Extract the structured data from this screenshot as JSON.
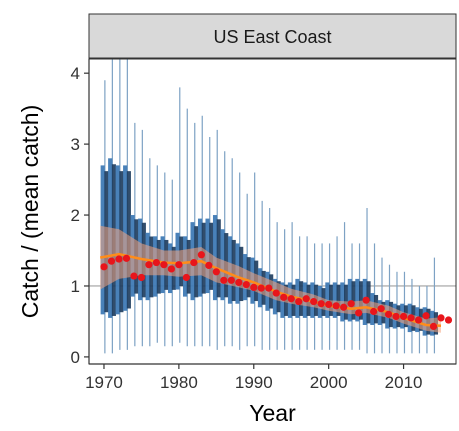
{
  "chart_data": {
    "type": "line",
    "facet_label": "US East Coast",
    "xlabel": "Year",
    "ylabel": "Catch / (mean catch)",
    "xlim": [
      1968,
      2017
    ],
    "ylim": [
      -0.1,
      4.2
    ],
    "x_ticks": [
      1970,
      1980,
      1990,
      2000,
      2010
    ],
    "y_ticks": [
      0,
      1,
      2,
      3,
      4
    ],
    "reference_line": 1,
    "grid": false,
    "colors": {
      "panel_border": "#333333",
      "strip_fill": "#d9d9d9",
      "ref_line": "#bdbdbd",
      "light_box": "#3f7ab5",
      "dark_box": "#1b3a5c",
      "whisker": "#7da2c4",
      "band_fill": "#f4a582",
      "smooth_line": "#ff8c1a",
      "point": "#e8151b"
    },
    "boxes": [
      {
        "year": 1970,
        "lo": 0.05,
        "q1": 0.6,
        "q3": 2.7,
        "hi": 3.9
      },
      {
        "year": 1971,
        "lo": 0.05,
        "q1": 0.55,
        "q3": 2.8,
        "hi": 4.2
      },
      {
        "year": 1972,
        "lo": 0.1,
        "q1": 0.6,
        "q3": 2.7,
        "hi": 4.2
      },
      {
        "year": 1973,
        "lo": 0.1,
        "q1": 0.65,
        "q3": 2.7,
        "hi": 4.2
      },
      {
        "year": 1974,
        "lo": 0.15,
        "q1": 0.85,
        "q3": 2.0,
        "hi": 3.3
      },
      {
        "year": 1975,
        "lo": 0.15,
        "q1": 0.8,
        "q3": 1.95,
        "hi": 3.2
      },
      {
        "year": 1976,
        "lo": 0.15,
        "q1": 0.8,
        "q3": 1.75,
        "hi": 2.8
      },
      {
        "year": 1977,
        "lo": 0.2,
        "q1": 0.85,
        "q3": 1.7,
        "hi": 2.7
      },
      {
        "year": 1978,
        "lo": 0.15,
        "q1": 0.9,
        "q3": 1.7,
        "hi": 2.6
      },
      {
        "year": 1979,
        "lo": 0.15,
        "q1": 0.9,
        "q3": 1.6,
        "hi": 2.5
      },
      {
        "year": 1980,
        "lo": 0.2,
        "q1": 0.95,
        "q3": 1.75,
        "hi": 3.8
      },
      {
        "year": 1981,
        "lo": 0.15,
        "q1": 0.85,
        "q3": 1.7,
        "hi": 3.5
      },
      {
        "year": 1982,
        "lo": 0.15,
        "q1": 0.8,
        "q3": 1.9,
        "hi": 3.3
      },
      {
        "year": 1983,
        "lo": 0.15,
        "q1": 0.85,
        "q3": 1.95,
        "hi": 3.4
      },
      {
        "year": 1984,
        "lo": 0.15,
        "q1": 0.9,
        "q3": 1.95,
        "hi": 3.1
      },
      {
        "year": 1985,
        "lo": 0.1,
        "q1": 0.8,
        "q3": 2.0,
        "hi": 3.2
      },
      {
        "year": 1986,
        "lo": 0.15,
        "q1": 0.8,
        "q3": 1.8,
        "hi": 2.9
      },
      {
        "year": 1987,
        "lo": 0.15,
        "q1": 0.75,
        "q3": 1.7,
        "hi": 2.8
      },
      {
        "year": 1988,
        "lo": 0.1,
        "q1": 0.75,
        "q3": 1.6,
        "hi": 2.6
      },
      {
        "year": 1989,
        "lo": 0.15,
        "q1": 0.8,
        "q3": 1.45,
        "hi": 2.3
      },
      {
        "year": 1990,
        "lo": 0.15,
        "q1": 0.75,
        "q3": 1.4,
        "hi": 2.6
      },
      {
        "year": 1991,
        "lo": 0.1,
        "q1": 0.7,
        "q3": 1.25,
        "hi": 2.2
      },
      {
        "year": 1992,
        "lo": 0.1,
        "q1": 0.65,
        "q3": 1.2,
        "hi": 2.1
      },
      {
        "year": 1993,
        "lo": 0.1,
        "q1": 0.6,
        "q3": 1.1,
        "hi": 1.9
      },
      {
        "year": 1994,
        "lo": 0.1,
        "q1": 0.55,
        "q3": 1.05,
        "hi": 1.8
      },
      {
        "year": 1995,
        "lo": 0.1,
        "q1": 0.55,
        "q3": 1.05,
        "hi": 1.9
      },
      {
        "year": 1996,
        "lo": 0.1,
        "q1": 0.55,
        "q3": 1.1,
        "hi": 1.7
      },
      {
        "year": 1997,
        "lo": 0.1,
        "q1": 0.55,
        "q3": 1.05,
        "hi": 1.7
      },
      {
        "year": 1998,
        "lo": 0.1,
        "q1": 0.55,
        "q3": 1.05,
        "hi": 1.6
      },
      {
        "year": 1999,
        "lo": 0.1,
        "q1": 0.55,
        "q3": 1.0,
        "hi": 1.6
      },
      {
        "year": 2000,
        "lo": 0.1,
        "q1": 0.55,
        "q3": 1.05,
        "hi": 1.6
      },
      {
        "year": 2001,
        "lo": 0.1,
        "q1": 0.55,
        "q3": 1.05,
        "hi": 1.7
      },
      {
        "year": 2002,
        "lo": 0.1,
        "q1": 0.5,
        "q3": 1.05,
        "hi": 1.9
      },
      {
        "year": 2003,
        "lo": 0.1,
        "q1": 0.5,
        "q3": 1.1,
        "hi": 1.6
      },
      {
        "year": 2004,
        "lo": 0.1,
        "q1": 0.5,
        "q3": 1.1,
        "hi": 1.6
      },
      {
        "year": 2005,
        "lo": 0.05,
        "q1": 0.45,
        "q3": 1.1,
        "hi": 2.1
      },
      {
        "year": 2006,
        "lo": 0.05,
        "q1": 0.45,
        "q3": 0.9,
        "hi": 1.6
      },
      {
        "year": 2007,
        "lo": 0.05,
        "q1": 0.45,
        "q3": 0.8,
        "hi": 1.4
      },
      {
        "year": 2008,
        "lo": 0.05,
        "q1": 0.4,
        "q3": 0.8,
        "hi": 1.3
      },
      {
        "year": 2009,
        "lo": 0.05,
        "q1": 0.4,
        "q3": 0.75,
        "hi": 1.2
      },
      {
        "year": 2010,
        "lo": 0.05,
        "q1": 0.4,
        "q3": 0.75,
        "hi": 1.2
      },
      {
        "year": 2011,
        "lo": 0.05,
        "q1": 0.35,
        "q3": 0.75,
        "hi": 1.1
      },
      {
        "year": 2012,
        "lo": 0.05,
        "q1": 0.35,
        "q3": 0.7,
        "hi": 1.0
      },
      {
        "year": 2013,
        "lo": 0.05,
        "q1": 0.3,
        "q3": 0.7,
        "hi": 1.0
      },
      {
        "year": 2014,
        "lo": 0.05,
        "q1": 0.3,
        "q3": 0.65,
        "hi": 1.4
      }
    ],
    "smooth": {
      "x": [
        1969.5,
        1972,
        1975,
        1978,
        1980,
        1983,
        1985,
        1988,
        1990,
        1993,
        1995,
        1998,
        2000,
        2003,
        2005,
        2008,
        2010,
        2013,
        2015
      ],
      "y": [
        1.4,
        1.45,
        1.38,
        1.33,
        1.32,
        1.35,
        1.25,
        1.12,
        1.05,
        0.92,
        0.85,
        0.78,
        0.72,
        0.68,
        0.7,
        0.63,
        0.55,
        0.45,
        0.44
      ],
      "lo": [
        0.95,
        1.1,
        1.15,
        1.15,
        1.13,
        1.15,
        1.05,
        0.98,
        0.93,
        0.8,
        0.75,
        0.7,
        0.65,
        0.6,
        0.62,
        0.55,
        0.47,
        0.37,
        0.34
      ],
      "hi": [
        1.85,
        1.8,
        1.6,
        1.5,
        1.5,
        1.55,
        1.4,
        1.28,
        1.18,
        1.05,
        0.96,
        0.88,
        0.8,
        0.78,
        0.8,
        0.72,
        0.63,
        0.54,
        0.56
      ]
    },
    "points": {
      "x": [
        1970,
        1971,
        1972,
        1973,
        1974,
        1975,
        1976,
        1977,
        1978,
        1979,
        1980,
        1981,
        1982,
        1983,
        1984,
        1985,
        1986,
        1987,
        1988,
        1989,
        1990,
        1991,
        1992,
        1993,
        1994,
        1995,
        1996,
        1997,
        1998,
        1999,
        2000,
        2001,
        2002,
        2003,
        2004,
        2005,
        2006,
        2007,
        2008,
        2009,
        2010,
        2011,
        2012,
        2013,
        2014,
        2015,
        2016
      ],
      "y": [
        1.27,
        1.35,
        1.38,
        1.39,
        1.14,
        1.12,
        1.3,
        1.33,
        1.3,
        1.24,
        1.3,
        1.12,
        1.33,
        1.44,
        1.29,
        1.2,
        1.08,
        1.08,
        1.05,
        1.02,
        0.98,
        0.97,
        0.97,
        0.9,
        0.84,
        0.82,
        0.78,
        0.82,
        0.78,
        0.75,
        0.74,
        0.72,
        0.7,
        0.75,
        0.62,
        0.8,
        0.64,
        0.68,
        0.6,
        0.57,
        0.57,
        0.55,
        0.52,
        0.58,
        0.43,
        0.55,
        0.52
      ]
    }
  }
}
